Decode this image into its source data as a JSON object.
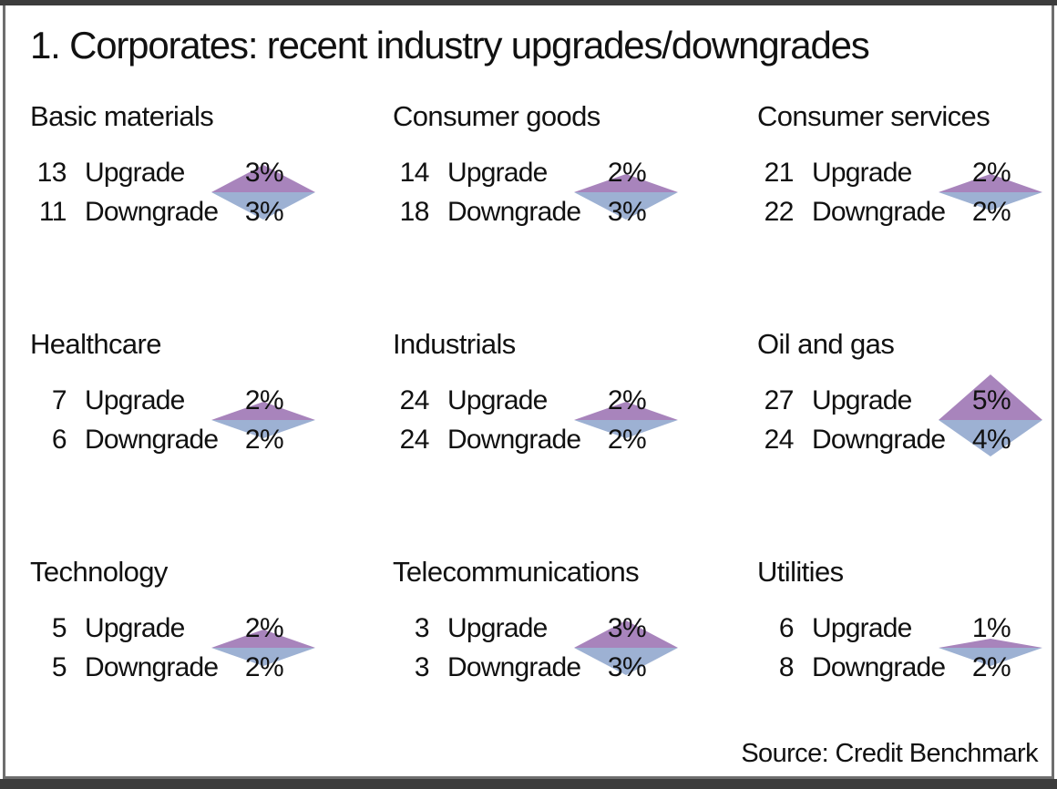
{
  "title": "1. Corporates: recent industry upgrades/downgrades",
  "source_note": "Source: Credit Benchmark",
  "row_labels": {
    "upgrade": "Upgrade",
    "downgrade": "Downgrade"
  },
  "colors": {
    "upgrade_fill": "#a884bc",
    "downgrade_fill": "#9db1d3",
    "frame_border": "#6e6e6e",
    "top_bar": "#3c3c3c",
    "bottom_bar": "#3c3c3c",
    "text": "#111111"
  },
  "chart_data": {
    "type": "table",
    "glyph": "diamond (top half = upgrade %, bottom half = downgrade %)",
    "title": "1. Corporates: recent industry upgrades/downgrades",
    "columns": [
      "count",
      "direction",
      "percent"
    ],
    "panels": [
      {
        "industry": "Basic materials",
        "upgrade_count": 13,
        "upgrade_pct": "3%",
        "downgrade_count": 11,
        "downgrade_pct": "3%"
      },
      {
        "industry": "Consumer goods",
        "upgrade_count": 14,
        "upgrade_pct": "2%",
        "downgrade_count": 18,
        "downgrade_pct": "3%"
      },
      {
        "industry": "Consumer services",
        "upgrade_count": 21,
        "upgrade_pct": "2%",
        "downgrade_count": 22,
        "downgrade_pct": "2%"
      },
      {
        "industry": "Healthcare",
        "upgrade_count": 7,
        "upgrade_pct": "2%",
        "downgrade_count": 6,
        "downgrade_pct": "2%"
      },
      {
        "industry": "Industrials",
        "upgrade_count": 24,
        "upgrade_pct": "2%",
        "downgrade_count": 24,
        "downgrade_pct": "2%"
      },
      {
        "industry": "Oil and gas",
        "upgrade_count": 27,
        "upgrade_pct": "5%",
        "downgrade_count": 24,
        "downgrade_pct": "4%"
      },
      {
        "industry": "Technology",
        "upgrade_count": 5,
        "upgrade_pct": "2%",
        "downgrade_count": 5,
        "downgrade_pct": "2%"
      },
      {
        "industry": "Telecommunications",
        "upgrade_count": 3,
        "upgrade_pct": "3%",
        "downgrade_count": 3,
        "downgrade_pct": "3%"
      },
      {
        "industry": "Utilities",
        "upgrade_count": 6,
        "upgrade_pct": "1%",
        "downgrade_count": 8,
        "downgrade_pct": "2%"
      }
    ]
  }
}
